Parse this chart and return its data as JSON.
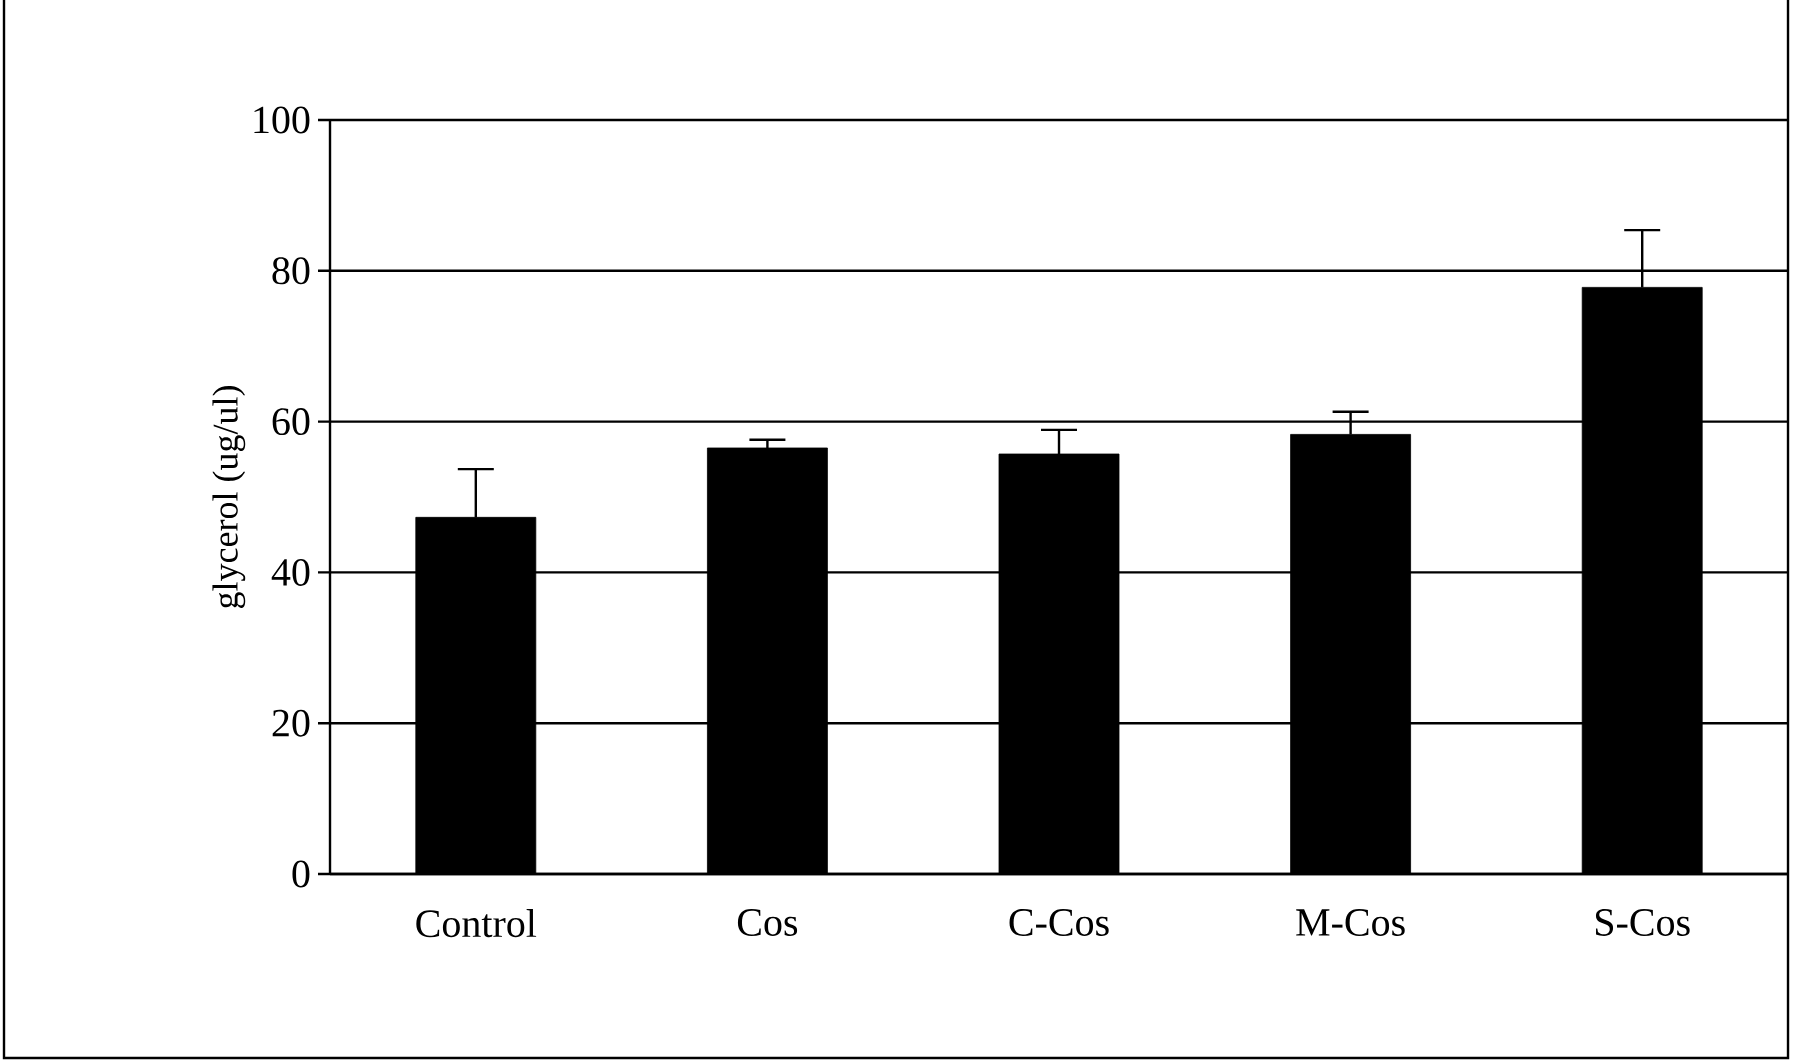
{
  "chart_data": {
    "type": "bar",
    "ylabel": "glycerol (ug/ul)",
    "categories": [
      "Control",
      "Cos",
      "C-Cos",
      "M-Cos",
      "S-Cos"
    ],
    "values": [
      47.3,
      56.5,
      55.7,
      58.3,
      77.8
    ],
    "errors": [
      [
        47.3,
        53.7
      ],
      [
        56.5,
        57.6
      ],
      [
        55.7,
        58.9
      ],
      [
        58.3,
        61.3
      ],
      [
        77.8,
        85.4
      ]
    ],
    "color": "#000000",
    "ylim": [
      0,
      100
    ],
    "yticks": [
      0,
      20,
      40,
      60,
      80,
      100
    ],
    "grid": "y"
  }
}
